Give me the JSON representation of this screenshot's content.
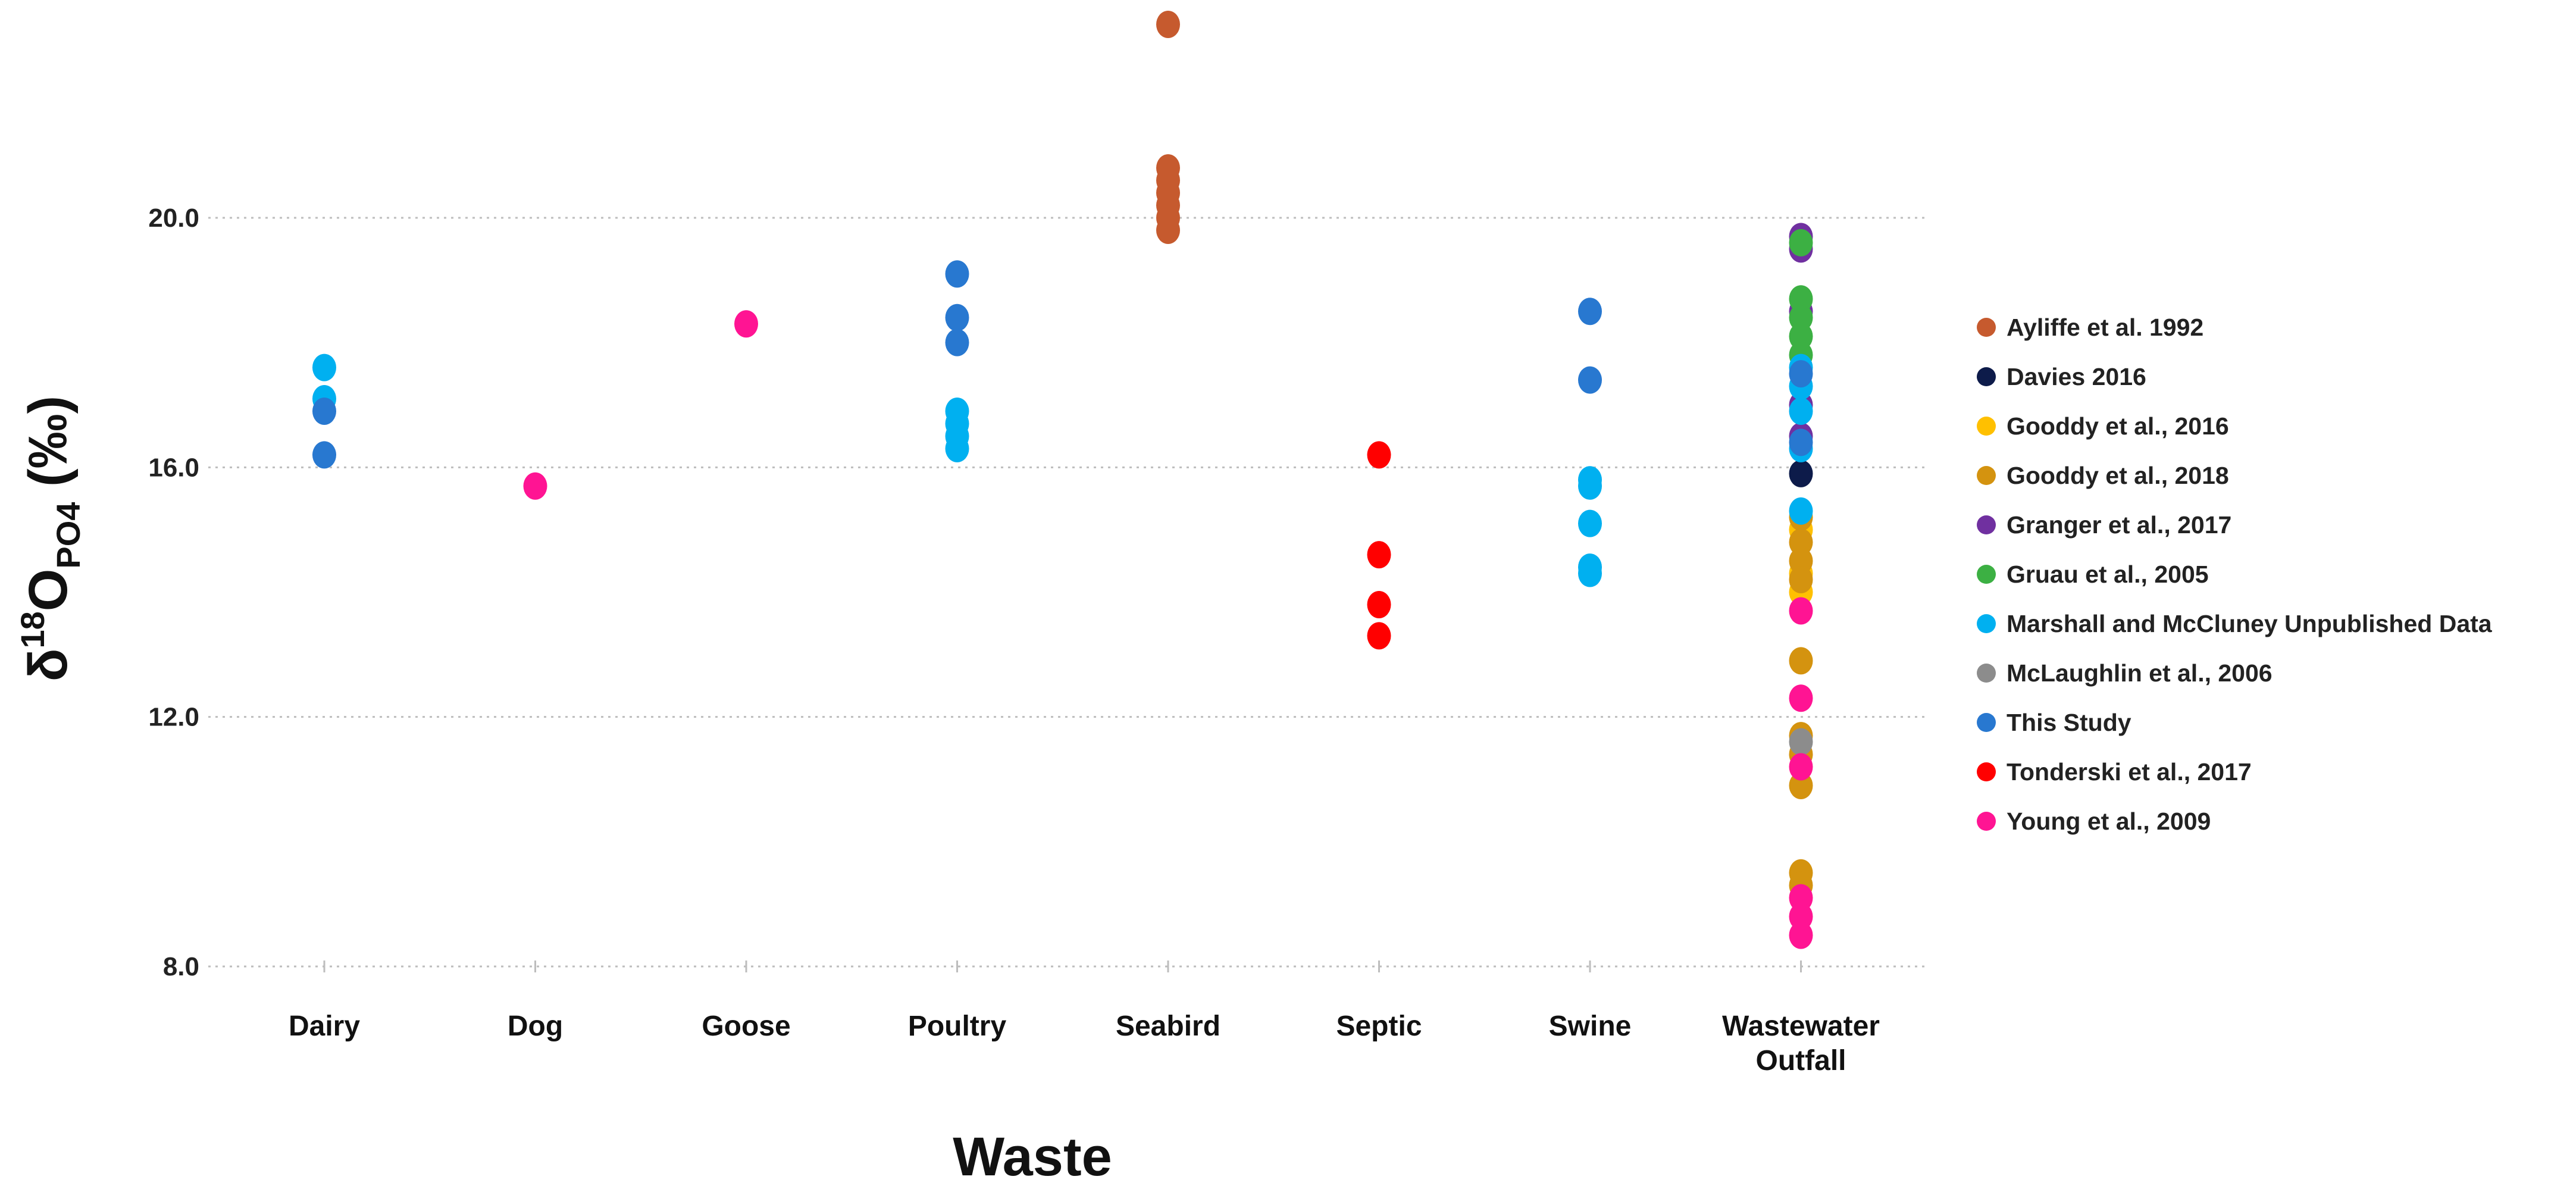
{
  "chart_data": {
    "type": "scatter",
    "title": "",
    "xlabel": "Waste",
    "ylabel_main": "δ",
    "ylabel_sup": "18",
    "ylabel_o": "O",
    "ylabel_sub": "PO4",
    "ylabel_unit": " (‰)",
    "ylim": [
      7.5,
      23.5
    ],
    "yticks": [
      8.0,
      12.0,
      16.0,
      20.0
    ],
    "ytick_labels": [
      "8.0",
      "12.0",
      "16.0",
      "20.0"
    ],
    "grid": true,
    "legend_position": "right",
    "categories": [
      {
        "key": "Dairy",
        "lines": [
          "Dairy"
        ]
      },
      {
        "key": "Dog",
        "lines": [
          "Dog"
        ]
      },
      {
        "key": "Goose",
        "lines": [
          "Goose"
        ]
      },
      {
        "key": "Poultry",
        "lines": [
          "Poultry"
        ]
      },
      {
        "key": "Seabird",
        "lines": [
          "Seabird"
        ]
      },
      {
        "key": "Septic",
        "lines": [
          "Septic"
        ]
      },
      {
        "key": "Swine",
        "lines": [
          "Swine"
        ]
      },
      {
        "key": "Wastewater Outfall",
        "lines": [
          "Wastewater",
          "Outfall"
        ]
      }
    ],
    "series": [
      {
        "name": "Ayliffe et al. 1992",
        "color": "#c65a2e",
        "points": [
          [
            "Seabird",
            23.1
          ],
          [
            "Seabird",
            20.8
          ],
          [
            "Seabird",
            20.6
          ],
          [
            "Seabird",
            20.4
          ],
          [
            "Seabird",
            20.2
          ],
          [
            "Seabird",
            20.0
          ],
          [
            "Seabird",
            19.8
          ]
        ]
      },
      {
        "name": "Davies 2016",
        "color": "#0d1b4a",
        "points": [
          [
            "Wastewater Outfall",
            15.9
          ]
        ]
      },
      {
        "name": "Gooddy et al., 2016",
        "color": "#ffc000",
        "points": [
          [
            "Wastewater Outfall",
            15.0
          ],
          [
            "Wastewater Outfall",
            14.3
          ],
          [
            "Wastewater Outfall",
            14.0
          ]
        ]
      },
      {
        "name": "Gooddy et al., 2018",
        "color": "#d4930f",
        "points": [
          [
            "Wastewater Outfall",
            15.2
          ],
          [
            "Wastewater Outfall",
            14.8
          ],
          [
            "Wastewater Outfall",
            14.5
          ],
          [
            "Wastewater Outfall",
            14.2
          ],
          [
            "Wastewater Outfall",
            12.9
          ],
          [
            "Wastewater Outfall",
            11.7
          ],
          [
            "Wastewater Outfall",
            11.4
          ],
          [
            "Wastewater Outfall",
            10.9
          ],
          [
            "Wastewater Outfall",
            9.5
          ],
          [
            "Wastewater Outfall",
            9.3
          ]
        ]
      },
      {
        "name": "Granger et al., 2017",
        "color": "#7030a0",
        "points": [
          [
            "Wastewater Outfall",
            19.7
          ],
          [
            "Wastewater Outfall",
            19.5
          ],
          [
            "Wastewater Outfall",
            18.5
          ],
          [
            "Wastewater Outfall",
            17.0
          ],
          [
            "Wastewater Outfall",
            16.5
          ]
        ]
      },
      {
        "name": "Gruau et al., 2005",
        "color": "#3cb043",
        "points": [
          [
            "Wastewater Outfall",
            19.6
          ],
          [
            "Wastewater Outfall",
            18.7
          ],
          [
            "Wastewater Outfall",
            18.4
          ],
          [
            "Wastewater Outfall",
            18.1
          ],
          [
            "Wastewater Outfall",
            17.8
          ]
        ]
      },
      {
        "name": "Marshall and McCluney Unpublished Data",
        "color": "#00b0f0",
        "points": [
          [
            "Dairy",
            17.6
          ],
          [
            "Dairy",
            17.1
          ],
          [
            "Poultry",
            16.9
          ],
          [
            "Poultry",
            16.7
          ],
          [
            "Poultry",
            16.5
          ],
          [
            "Poultry",
            16.3
          ],
          [
            "Swine",
            15.8
          ],
          [
            "Swine",
            15.7
          ],
          [
            "Swine",
            15.1
          ],
          [
            "Swine",
            14.4
          ],
          [
            "Swine",
            14.3
          ],
          [
            "Wastewater Outfall",
            17.6
          ],
          [
            "Wastewater Outfall",
            17.3
          ],
          [
            "Wastewater Outfall",
            16.9
          ],
          [
            "Wastewater Outfall",
            16.3
          ],
          [
            "Wastewater Outfall",
            15.3
          ]
        ]
      },
      {
        "name": "McLaughlin et al., 2006",
        "color": "#8c8c8c",
        "points": [
          [
            "Wastewater Outfall",
            11.6
          ]
        ]
      },
      {
        "name": "This Study",
        "color": "#2878d0",
        "points": [
          [
            "Dairy",
            16.9
          ],
          [
            "Dairy",
            16.2
          ],
          [
            "Poultry",
            19.1
          ],
          [
            "Poultry",
            18.4
          ],
          [
            "Poultry",
            18.0
          ],
          [
            "Swine",
            18.5
          ],
          [
            "Swine",
            17.4
          ],
          [
            "Wastewater Outfall",
            17.5
          ],
          [
            "Wastewater Outfall",
            16.4
          ]
        ]
      },
      {
        "name": "Tonderski et al., 2017",
        "color": "#ff0000",
        "points": [
          [
            "Septic",
            16.2
          ],
          [
            "Septic",
            14.6
          ],
          [
            "Septic",
            13.8
          ],
          [
            "Septic",
            13.3
          ]
        ]
      },
      {
        "name": "Young et al., 2009",
        "color": "#ff1493",
        "points": [
          [
            "Dog",
            15.7
          ],
          [
            "Goose",
            18.3
          ],
          [
            "Wastewater Outfall",
            13.7
          ],
          [
            "Wastewater Outfall",
            12.3
          ],
          [
            "Wastewater Outfall",
            11.2
          ],
          [
            "Wastewater Outfall",
            9.1
          ],
          [
            "Wastewater Outfall",
            8.8
          ],
          [
            "Wastewater Outfall",
            8.5
          ]
        ]
      }
    ]
  }
}
